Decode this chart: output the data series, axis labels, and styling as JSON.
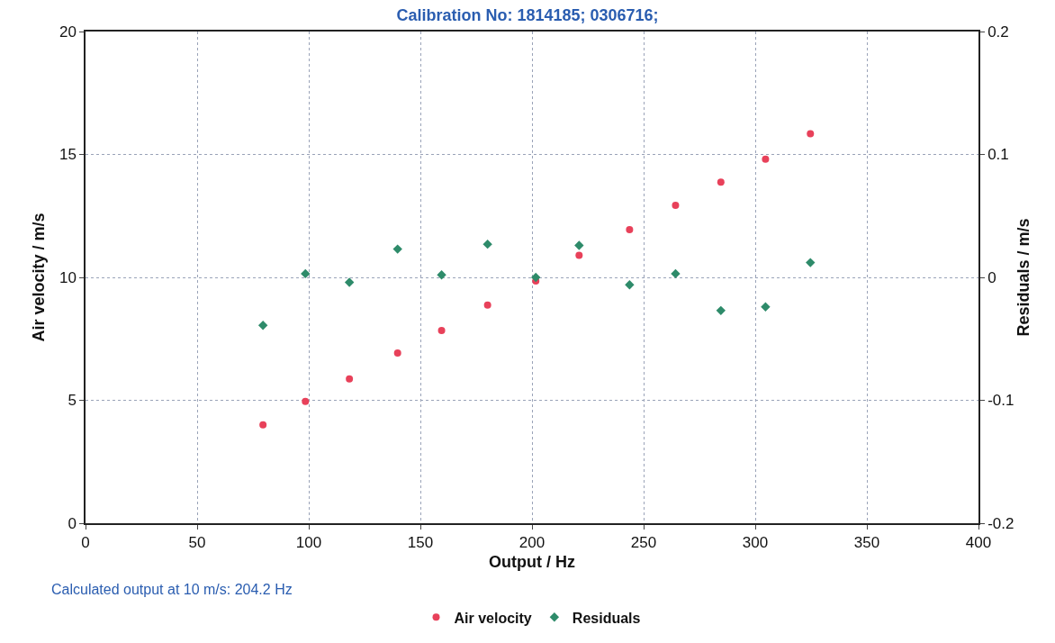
{
  "chart_data": {
    "type": "scatter",
    "title": "Calibration No: 1814185; 0306716;",
    "xlabel": "Output / Hz",
    "ylabel": "Air velocity / m/s",
    "y2label": "Residuals / m/s",
    "annotations": [
      "Calculated output at 10 m/s: 204.2 Hz"
    ],
    "x": [
      79.5,
      98.5,
      118.2,
      139.8,
      159.5,
      180.1,
      201.7,
      221.1,
      243.7,
      264.3,
      284.6,
      304.6,
      324.7
    ],
    "series": [
      {
        "name": "Air velocity",
        "color": "#e8415a",
        "marker": "circle",
        "values": [
          4.0,
          4.95,
          5.87,
          6.92,
          7.84,
          8.87,
          9.85,
          10.9,
          11.94,
          12.93,
          13.87,
          14.81,
          15.84
        ]
      },
      {
        "name": "Residuals",
        "color": "#2e8b6a",
        "marker": "diamond",
        "axis": "y2",
        "values": [
          -0.039,
          0.003,
          -0.004,
          0.023,
          0.002,
          0.027,
          0,
          0.026,
          -0.006,
          0.003,
          -0.027,
          -0.024,
          0.012
        ]
      }
    ],
    "xlim": [
      0,
      400
    ],
    "xticks": [
      0,
      50,
      100,
      150,
      200,
      250,
      300,
      350,
      400
    ],
    "ylim": [
      0,
      20
    ],
    "yticks": [
      0,
      5,
      10,
      15,
      20
    ],
    "y2lim": [
      -0.2,
      0.2
    ],
    "y2ticks": [
      -0.2,
      -0.1,
      0,
      0.1,
      0.2
    ],
    "grid": true,
    "legend": "bottom"
  }
}
